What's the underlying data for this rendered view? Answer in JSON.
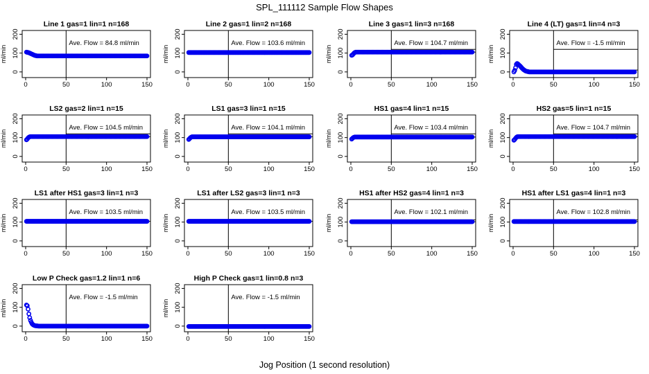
{
  "title": "SPL_111112  Sample Flow Shapes",
  "xlabel": "Jog Position (1 second resolution)",
  "chart_data": [
    {
      "type": "scatter",
      "title": "Line 1 gas=1 lin=1 n=168",
      "annotation": "Ave. Flow =  84.8  ml/min",
      "ylabel": "ml/min",
      "xlim": [
        0,
        150
      ],
      "ylim": [
        -30,
        220
      ],
      "xticks": [
        0,
        50,
        100,
        150
      ],
      "yticks": [
        0,
        100,
        200
      ],
      "vline_x": 50,
      "hline_y": null,
      "x": [
        1,
        2,
        3,
        4,
        5,
        6,
        7,
        8,
        9,
        10,
        11,
        12,
        13,
        14,
        15,
        20,
        30,
        50,
        75,
        100,
        125,
        150
      ],
      "y": [
        105,
        104,
        103,
        102,
        100,
        98,
        96,
        94,
        92,
        90,
        88,
        87,
        86,
        85,
        85,
        85,
        85,
        85,
        85,
        85,
        85,
        85
      ]
    },
    {
      "type": "scatter",
      "title": "Line 2 gas=1 lin=2 n=168",
      "annotation": "Ave. Flow = 103.6  ml/min",
      "ylabel": "ml/min",
      "xlim": [
        0,
        150
      ],
      "ylim": [
        -30,
        220
      ],
      "xticks": [
        0,
        50,
        100,
        150
      ],
      "yticks": [
        0,
        100,
        200
      ],
      "vline_x": 50,
      "hline_y": null,
      "x": [
        1,
        10,
        25,
        50,
        75,
        100,
        125,
        150
      ],
      "y": [
        103,
        103,
        103,
        103,
        103,
        103,
        103,
        103
      ]
    },
    {
      "type": "scatter",
      "title": "Line 3 gas=1 lin=3 n=168",
      "annotation": "Ave. Flow = 104.7  ml/min",
      "ylabel": "ml/min",
      "xlim": [
        0,
        150
      ],
      "ylim": [
        -30,
        220
      ],
      "xticks": [
        0,
        50,
        100,
        150
      ],
      "yticks": [
        0,
        100,
        200
      ],
      "vline_x": 50,
      "hline_y": [
        120,
        105
      ],
      "x": [
        1,
        2,
        3,
        4,
        5,
        6,
        7,
        8,
        10,
        15,
        25,
        50,
        75,
        100,
        125,
        150
      ],
      "y": [
        88,
        90,
        95,
        100,
        103,
        105,
        105,
        105,
        105,
        105,
        105,
        105,
        105,
        105,
        105,
        105
      ]
    },
    {
      "type": "scatter",
      "title": "Line 4 (LT) gas=1 lin=4 n=3",
      "annotation": "Ave. Flow =  -1.5  ml/min",
      "ylabel": "ml/min",
      "xlim": [
        0,
        150
      ],
      "ylim": [
        -30,
        220
      ],
      "xticks": [
        0,
        50,
        100,
        150
      ],
      "yticks": [
        0,
        100,
        200
      ],
      "vline_x": 50,
      "hline_y": [
        120,
        10
      ],
      "x": [
        1,
        2,
        3,
        4,
        5,
        6,
        7,
        8,
        9,
        10,
        11,
        12,
        13,
        14,
        15,
        16,
        17,
        18,
        19,
        20,
        22,
        25,
        30,
        50,
        75,
        100,
        125,
        150
      ],
      "y": [
        0,
        8,
        22,
        40,
        45,
        42,
        38,
        34,
        30,
        25,
        20,
        16,
        12,
        9,
        6,
        4,
        3,
        2,
        1,
        0,
        0,
        0,
        0,
        0,
        0,
        0,
        0,
        0
      ]
    },
    {
      "type": "scatter",
      "title": "LS2 gas=2 lin=1 n=15",
      "annotation": "Ave. Flow = 104.5  ml/min",
      "ylabel": "ml/min",
      "xlim": [
        0,
        150
      ],
      "ylim": [
        -30,
        220
      ],
      "xticks": [
        0,
        50,
        100,
        150
      ],
      "yticks": [
        0,
        100,
        200
      ],
      "vline_x": 50,
      "hline_y": [
        120,
        105
      ],
      "x": [
        1,
        2,
        3,
        4,
        5,
        6,
        8,
        10,
        25,
        50,
        75,
        100,
        125,
        150
      ],
      "y": [
        88,
        92,
        98,
        102,
        104,
        105,
        105,
        105,
        105,
        105,
        105,
        105,
        105,
        105
      ]
    },
    {
      "type": "scatter",
      "title": "LS1 gas=3 lin=1 n=15",
      "annotation": "Ave. Flow = 104.1  ml/min",
      "ylabel": "ml/min",
      "xlim": [
        0,
        150
      ],
      "ylim": [
        -30,
        220
      ],
      "xticks": [
        0,
        50,
        100,
        150
      ],
      "yticks": [
        0,
        100,
        200
      ],
      "vline_x": 50,
      "hline_y": [
        120,
        105
      ],
      "x": [
        1,
        2,
        3,
        4,
        5,
        6,
        8,
        10,
        25,
        50,
        75,
        100,
        125,
        150
      ],
      "y": [
        90,
        94,
        99,
        102,
        104,
        104,
        104,
        104,
        104,
        104,
        104,
        104,
        104,
        104
      ]
    },
    {
      "type": "scatter",
      "title": "HS1 gas=4 lin=1 n=15",
      "annotation": "Ave. Flow = 103.4  ml/min",
      "ylabel": "ml/min",
      "xlim": [
        0,
        150
      ],
      "ylim": [
        -30,
        220
      ],
      "xticks": [
        0,
        50,
        100,
        150
      ],
      "yticks": [
        0,
        100,
        200
      ],
      "vline_x": 50,
      "hline_y": [
        120,
        103
      ],
      "x": [
        1,
        2,
        3,
        4,
        5,
        6,
        8,
        10,
        25,
        50,
        75,
        100,
        125,
        150
      ],
      "y": [
        92,
        96,
        100,
        102,
        103,
        103,
        103,
        103,
        103,
        103,
        103,
        103,
        103,
        103
      ]
    },
    {
      "type": "scatter",
      "title": "HS2 gas=5 lin=1 n=15",
      "annotation": "Ave. Flow = 104.7  ml/min",
      "ylabel": "ml/min",
      "xlim": [
        0,
        150
      ],
      "ylim": [
        -30,
        220
      ],
      "xticks": [
        0,
        50,
        100,
        150
      ],
      "yticks": [
        0,
        100,
        200
      ],
      "vline_x": 50,
      "hline_y": [
        120,
        105
      ],
      "x": [
        1,
        2,
        3,
        4,
        5,
        6,
        8,
        10,
        25,
        50,
        75,
        100,
        125,
        150
      ],
      "y": [
        86,
        90,
        96,
        101,
        104,
        105,
        105,
        105,
        105,
        105,
        105,
        105,
        105,
        105
      ]
    },
    {
      "type": "scatter",
      "title": "LS1 after HS1 gas=3 lin=1 n=3",
      "annotation": "Ave. Flow =  103.5  ml/min",
      "ylabel": "ml/min",
      "xlim": [
        0,
        150
      ],
      "ylim": [
        -30,
        220
      ],
      "xticks": [
        0,
        50,
        100,
        150
      ],
      "yticks": [
        0,
        100,
        200
      ],
      "vline_x": 50,
      "hline_y": [
        104
      ],
      "x": [
        1,
        10,
        25,
        50,
        75,
        100,
        125,
        150
      ],
      "y": [
        104,
        104,
        104,
        104,
        104,
        104,
        104,
        104
      ]
    },
    {
      "type": "scatter",
      "title": "LS1 after LS2 gas=3 lin=1 n=3",
      "annotation": "Ave. Flow =  103.5  ml/min",
      "ylabel": "ml/min",
      "xlim": [
        0,
        150
      ],
      "ylim": [
        -30,
        220
      ],
      "xticks": [
        0,
        50,
        100,
        150
      ],
      "yticks": [
        0,
        100,
        200
      ],
      "vline_x": 50,
      "hline_y": [
        104
      ],
      "x": [
        1,
        10,
        25,
        50,
        75,
        100,
        125,
        150
      ],
      "y": [
        104,
        104,
        104,
        104,
        104,
        104,
        104,
        104
      ]
    },
    {
      "type": "scatter",
      "title": "HS1 after HS2 gas=4 lin=1 n=3",
      "annotation": "Ave. Flow =  102.1  ml/min",
      "ylabel": "ml/min",
      "xlim": [
        0,
        150
      ],
      "ylim": [
        -30,
        220
      ],
      "xticks": [
        0,
        50,
        100,
        150
      ],
      "yticks": [
        0,
        100,
        200
      ],
      "vline_x": 50,
      "hline_y": [
        112,
        102
      ],
      "x": [
        1,
        10,
        25,
        50,
        75,
        100,
        125,
        150
      ],
      "y": [
        102,
        102,
        102,
        102,
        102,
        102,
        102,
        102
      ]
    },
    {
      "type": "scatter",
      "title": "HS1 after LS1 gas=4 lin=1 n=3",
      "annotation": "Ave. Flow =  102.8  ml/min",
      "ylabel": "ml/min",
      "xlim": [
        0,
        150
      ],
      "ylim": [
        -30,
        220
      ],
      "xticks": [
        0,
        50,
        100,
        150
      ],
      "yticks": [
        0,
        100,
        200
      ],
      "vline_x": 50,
      "hline_y": [
        112,
        103
      ],
      "x": [
        1,
        10,
        25,
        50,
        75,
        100,
        125,
        150
      ],
      "y": [
        103,
        103,
        103,
        103,
        103,
        103,
        103,
        103
      ]
    },
    {
      "type": "scatter",
      "title": "Low P Check gas=1.2 lin=1 n=6",
      "annotation": "Ave. Flow =  -1.5  ml/min",
      "ylabel": "ml/min",
      "xlim": [
        0,
        150
      ],
      "ylim": [
        -30,
        220
      ],
      "xticks": [
        0,
        50,
        100,
        150
      ],
      "yticks": [
        0,
        100,
        200
      ],
      "vline_x": 50,
      "hline_y": null,
      "x": [
        1,
        2,
        3,
        4,
        5,
        6,
        7,
        8,
        9,
        10,
        11,
        12,
        14,
        16,
        20,
        30,
        50,
        75,
        100,
        125,
        150
      ],
      "y": [
        112,
        108,
        90,
        65,
        45,
        30,
        20,
        12,
        8,
        5,
        3,
        2,
        1,
        0,
        0,
        0,
        0,
        0,
        0,
        0,
        0
      ]
    },
    {
      "type": "scatter",
      "title": "High P Check gas=1 lin=0.8 n=3",
      "annotation": "Ave. Flow =  -1.5  ml/min",
      "ylabel": "ml/min",
      "xlim": [
        0,
        150
      ],
      "ylim": [
        -30,
        220
      ],
      "xticks": [
        0,
        50,
        100,
        150
      ],
      "yticks": [
        0,
        100,
        200
      ],
      "vline_x": 50,
      "hline_y": null,
      "x": [
        1,
        10,
        25,
        50,
        75,
        100,
        125,
        150
      ],
      "y": [
        -2,
        -2,
        -2,
        -2,
        -2,
        -2,
        -2,
        -2
      ]
    }
  ],
  "colors": {
    "points": "#0000ee",
    "axes": "#000000",
    "background": "#ffffff"
  }
}
